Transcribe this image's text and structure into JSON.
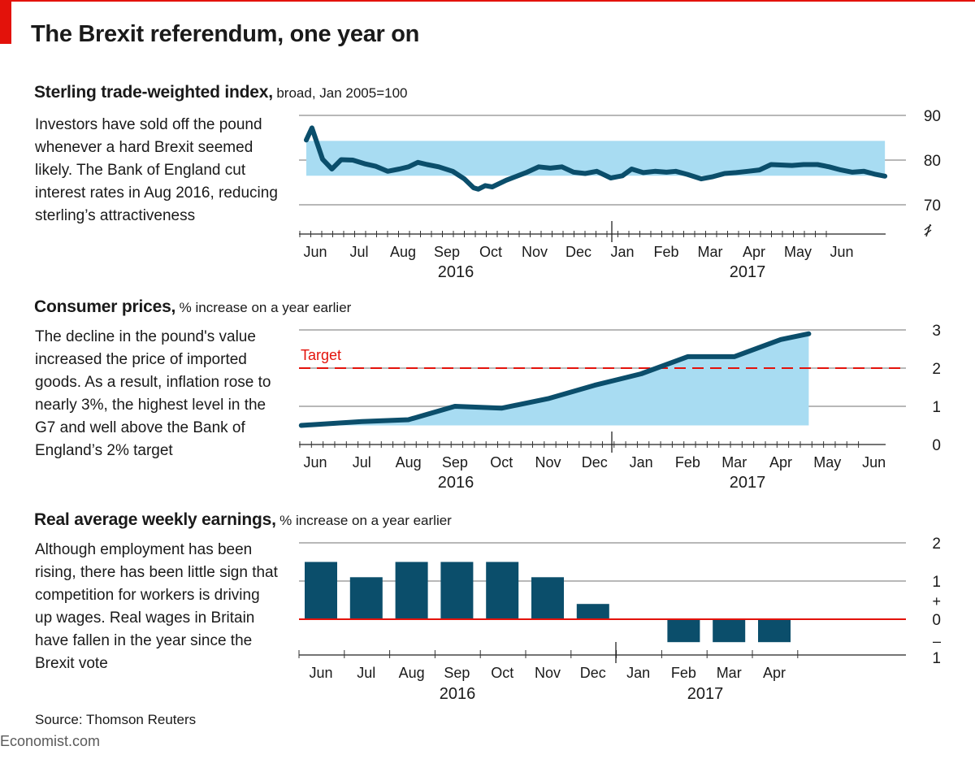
{
  "header": {
    "title": "The Brexit referendum, one year on"
  },
  "footer": {
    "source": "Source: Thomson Reuters",
    "brand": "Economist.com"
  },
  "colors": {
    "accent_red": "#e3120b",
    "line_navy": "#0b4e6b",
    "fill_blue": "#a8dcf2",
    "bar_navy": "#0b4e6b",
    "grid": "#b8b8b8"
  },
  "panels": {
    "sterling": {
      "title": "Sterling trade-weighted index,",
      "subtitle": "broad, Jan 2005=100",
      "text": "Investors have sold off the pound whenever a hard Brexit seemed likely. The Bank of England cut interest rates in Aug 2016, reducing sterling’s attractiveness"
    },
    "cpi": {
      "title": "Consumer prices,",
      "subtitle": "% increase on a year earlier",
      "text": "The decline in the pound's value increased the price of imported goods. As a result, inflation rose to nearly 3%, the highest level in the G7 and well above the Bank of England’s 2% target"
    },
    "earnings": {
      "title": "Real average weekly earnings,",
      "subtitle": "% increase on a year earlier",
      "text": "Although employment has been rising, there has been little sign that competition for workers is driving up wages. Real wages in Britain have fallen in the year since the Brexit vote"
    }
  },
  "chart_data": [
    {
      "type": "area",
      "title": "Sterling trade-weighted index",
      "subtitle": "broad, Jan 2005=100",
      "months": [
        "Jun",
        "Jul",
        "Aug",
        "Sep",
        "Oct",
        "Nov",
        "Dec",
        "Jan",
        "Feb",
        "Mar",
        "Apr",
        "May",
        "Jun"
      ],
      "years": [
        "2016",
        "2017"
      ],
      "y_ticks": [
        70,
        80,
        90
      ],
      "ylim": [
        70,
        90
      ],
      "axis_break": true,
      "shaded_band": [
        84.3,
        76.5
      ],
      "x": [
        0.0,
        0.12,
        0.35,
        0.55,
        0.75,
        1.0,
        1.25,
        1.5,
        1.75,
        2.0,
        2.2,
        2.4,
        2.6,
        2.85,
        3.15,
        3.4,
        3.6,
        3.7,
        3.85,
        4.0,
        4.3,
        4.55,
        4.75,
        5.0,
        5.25,
        5.5,
        5.75,
        6.0,
        6.25,
        6.55,
        6.8,
        7.0,
        7.25,
        7.5,
        7.75,
        7.95,
        8.2,
        8.5,
        8.75,
        9.0,
        9.25,
        9.5,
        9.75,
        10.0,
        10.2,
        10.45,
        10.7,
        11.0,
        11.25,
        11.5,
        11.75,
        12.0,
        12.25,
        12.45
      ],
      "values": [
        84.5,
        87.2,
        80.2,
        78.0,
        80.1,
        80.0,
        79.2,
        78.6,
        77.5,
        78.0,
        78.5,
        79.5,
        79.0,
        78.5,
        77.5,
        75.8,
        73.8,
        73.5,
        74.3,
        74.0,
        75.5,
        76.5,
        77.3,
        78.5,
        78.2,
        78.5,
        77.3,
        77.0,
        77.5,
        76.0,
        76.5,
        78.0,
        77.2,
        77.5,
        77.3,
        77.5,
        76.8,
        75.8,
        76.3,
        77.0,
        77.2,
        77.5,
        77.8,
        79.0,
        78.9,
        78.8,
        79.0,
        79.0,
        78.5,
        77.8,
        77.3,
        77.5,
        76.8,
        76.4
      ]
    },
    {
      "type": "area",
      "title": "Consumer prices",
      "subtitle": "% increase on a year earlier",
      "months": [
        "Jun",
        "Jul",
        "Aug",
        "Sep",
        "Oct",
        "Nov",
        "Dec",
        "Jan",
        "Feb",
        "Mar",
        "Apr",
        "May",
        "Jun"
      ],
      "years": [
        "2016",
        "2017"
      ],
      "y_ticks": [
        0,
        1,
        2,
        3
      ],
      "ylim": [
        0,
        3
      ],
      "reference_line": {
        "label": "Target",
        "value": 2
      },
      "x": [
        -0.3,
        1.0,
        2.0,
        3.0,
        4.0,
        5.0,
        6.0,
        7.0,
        8.0,
        9.0,
        10.0,
        10.6
      ],
      "values": [
        0.5,
        0.6,
        0.65,
        1.0,
        0.95,
        1.2,
        1.55,
        1.85,
        2.3,
        2.3,
        2.75,
        2.9
      ]
    },
    {
      "type": "bar",
      "title": "Real average weekly earnings",
      "subtitle": "% increase on a year earlier",
      "categories": [
        "Jun",
        "Jul",
        "Aug",
        "Sep",
        "Oct",
        "Nov",
        "Dec",
        "Jan",
        "Feb",
        "Mar",
        "Apr"
      ],
      "years": [
        "2016",
        "2017"
      ],
      "values": [
        1.5,
        1.1,
        1.5,
        1.5,
        1.5,
        1.1,
        0.4,
        null,
        -0.6,
        -0.6,
        -0.6
      ],
      "y_ticks": [
        -1,
        0,
        1,
        2
      ],
      "y_tick_labels": [
        "1",
        "0",
        "1",
        "2"
      ],
      "sign_labels": [
        "+",
        "–"
      ],
      "ylim": [
        -1,
        2
      ]
    }
  ]
}
